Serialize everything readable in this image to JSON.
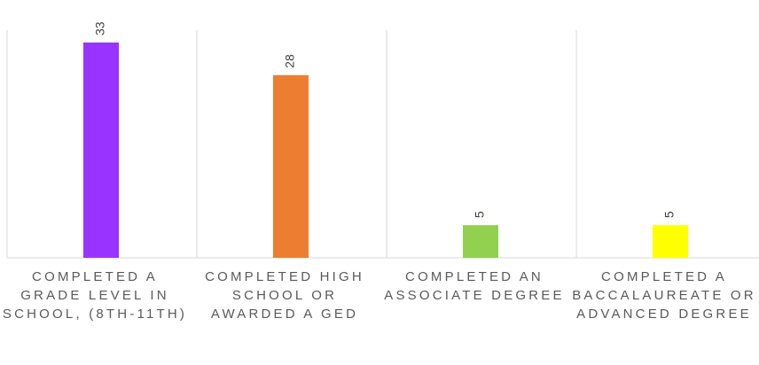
{
  "chart_data": {
    "type": "bar",
    "categories": [
      "COMPLETED A GRADE LEVEL IN SCHOOL, (8TH-11TH)",
      "COMPLETED HIGH SCHOOL OR AWARDED A GED",
      "COMPLETED AN ASSOCIATE DEGREE",
      "COMPLETED A BACCALAUREATE OR ADVANCED DEGREE"
    ],
    "values": [
      33,
      28,
      5,
      5
    ],
    "data_labels": [
      "33",
      "28",
      "5",
      "5"
    ],
    "colors": [
      "#9933ff",
      "#ed7d31",
      "#92d050",
      "#ffff00"
    ],
    "ylim": [
      0,
      33
    ],
    "grid": "vertical separators between categories",
    "legend": "none"
  }
}
